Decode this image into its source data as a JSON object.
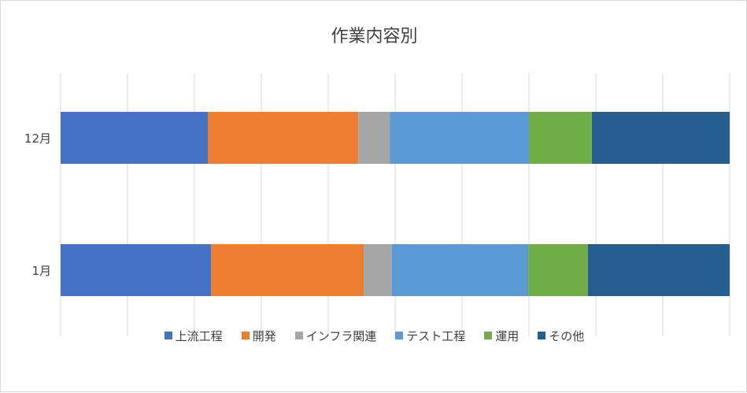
{
  "chart_data": {
    "type": "bar",
    "orientation": "horizontal",
    "stacked": "percent",
    "title": "作業内容別",
    "categories": [
      "12月",
      "1月"
    ],
    "series": [
      {
        "name": "上流工程",
        "color": "#4472C4",
        "values": [
          22,
          22.5
        ]
      },
      {
        "name": "開発",
        "color": "#ED7D31",
        "values": [
          22.5,
          22.8
        ]
      },
      {
        "name": "インフラ関連",
        "color": "#A5A5A5",
        "values": [
          4.7,
          4.2
        ]
      },
      {
        "name": "テスト工程",
        "color": "#5B9BD5",
        "values": [
          20.8,
          20.4
        ]
      },
      {
        "name": "運用",
        "color": "#70AD47",
        "values": [
          9.4,
          8.9
        ]
      },
      {
        "name": "その他",
        "color": "#255E91",
        "values": [
          20.6,
          21.2
        ]
      }
    ],
    "xlim": [
      0,
      100
    ],
    "grid": true,
    "legend_position": "bottom"
  }
}
